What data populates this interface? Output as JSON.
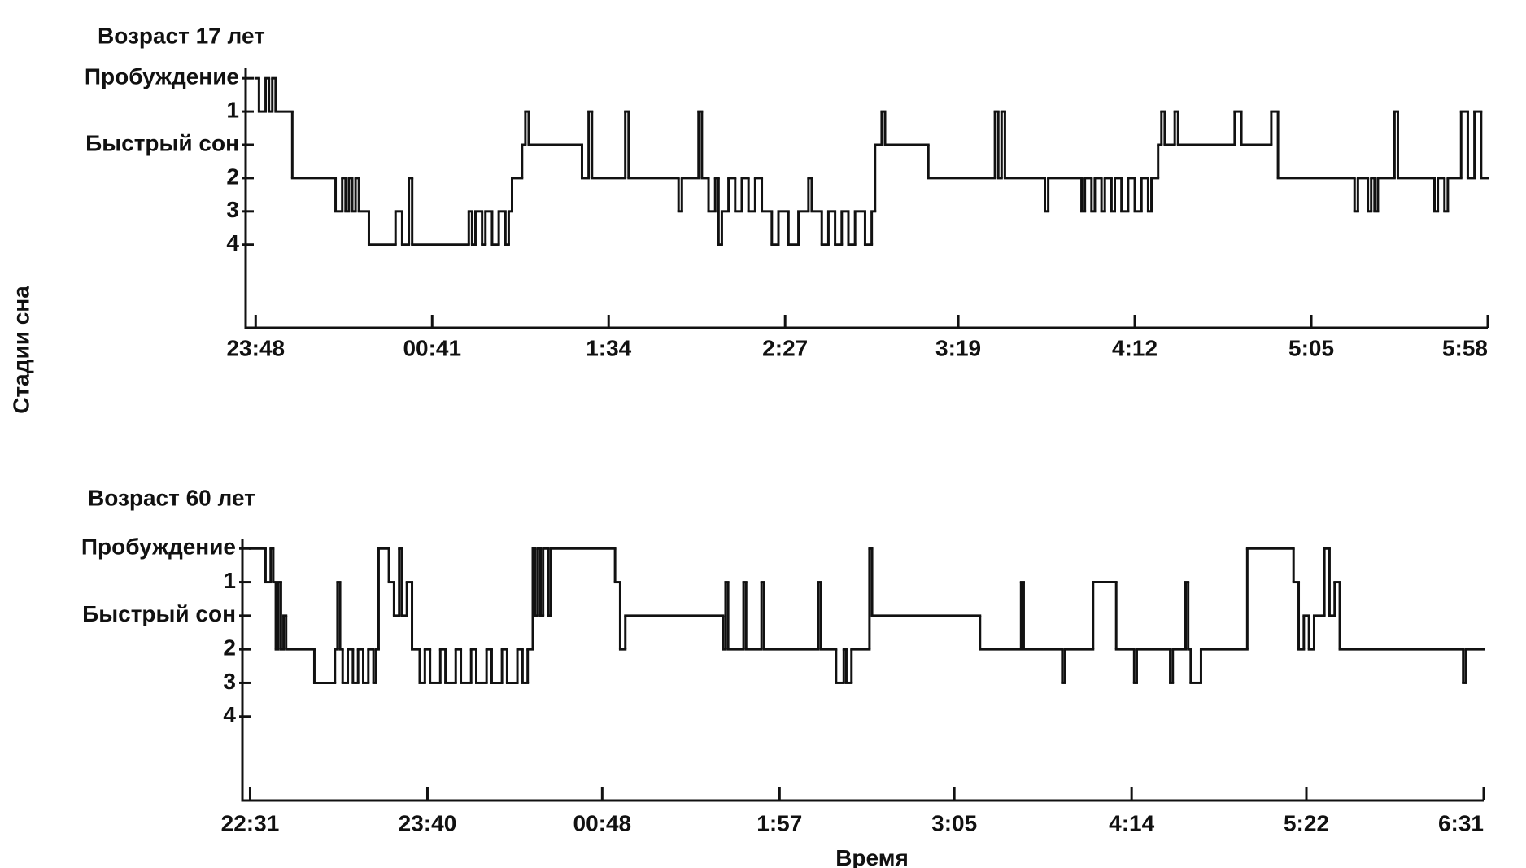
{
  "chart_data": [
    {
      "type": "step",
      "title": "Возраст 17 лет",
      "ylabel": "Стадии сна",
      "color": "#111111",
      "xlim": [
        -3,
        370
      ],
      "ylim": [
        7.5,
        -0.2
      ],
      "xticks": [
        {
          "value": 0,
          "label": "23:48"
        },
        {
          "value": 53,
          "label": "00:41"
        },
        {
          "value": 106,
          "label": "1:34"
        },
        {
          "value": 159,
          "label": "2:27"
        },
        {
          "value": 211,
          "label": "3:19"
        },
        {
          "value": 264,
          "label": "4:12"
        },
        {
          "value": 317,
          "label": "5:05"
        },
        {
          "value": 370,
          "label": "5:58"
        }
      ],
      "yticks": [
        {
          "value": 0,
          "label": "Пробуждение"
        },
        1,
        {
          "value": 2,
          "label": "Быстрый сон"
        },
        {
          "value": 3,
          "label": "2"
        },
        {
          "value": 4,
          "label": "3"
        },
        {
          "value": 5,
          "label": "4"
        }
      ],
      "x": [
        0,
        1,
        3,
        4,
        5,
        6,
        11,
        24,
        26,
        27,
        28,
        29,
        30,
        31,
        34,
        42,
        44,
        46,
        47,
        64,
        65,
        66,
        68,
        69,
        71,
        73,
        75,
        76,
        77,
        80,
        81,
        82,
        98,
        100,
        101,
        111,
        112,
        127,
        128,
        133,
        134,
        136,
        138,
        139,
        140,
        142,
        144,
        146,
        148,
        150,
        152,
        155,
        157,
        160,
        163,
        166,
        167,
        170,
        172,
        174,
        176,
        178,
        180,
        183,
        185,
        186,
        188,
        189,
        202,
        222,
        223,
        224,
        225,
        237,
        238,
        248,
        249,
        251,
        252,
        254,
        255,
        257,
        258,
        260,
        262,
        264,
        266,
        268,
        269,
        271,
        272,
        273,
        276,
        277,
        294,
        296,
        305,
        307,
        330,
        331,
        334,
        335,
        336,
        337,
        342,
        343,
        354,
        355,
        357,
        358,
        362,
        364,
        366,
        368
      ],
      "values": [
        0,
        1,
        0,
        1,
        0,
        1,
        3,
        4,
        3,
        4,
        3,
        4,
        3,
        4,
        5,
        4,
        5,
        3,
        5,
        4,
        5,
        4,
        5,
        4,
        5,
        4,
        5,
        4,
        3,
        2,
        1,
        2,
        3,
        1,
        3,
        1,
        3,
        4,
        3,
        1,
        3,
        4,
        3,
        5,
        4,
        3,
        4,
        3,
        4,
        3,
        4,
        5,
        4,
        5,
        4,
        3,
        4,
        5,
        4,
        5,
        4,
        5,
        4,
        5,
        4,
        2,
        1,
        2,
        3,
        1,
        3,
        1,
        3,
        4,
        3,
        4,
        3,
        4,
        3,
        4,
        3,
        4,
        3,
        4,
        3,
        4,
        3,
        4,
        3,
        2,
        1,
        2,
        1,
        2,
        1,
        2,
        1,
        3,
        4,
        3,
        4,
        3,
        4,
        3,
        1,
        3,
        4,
        3,
        4,
        3,
        1,
        3,
        1,
        3
      ]
    },
    {
      "type": "step",
      "title": "Возраст 60 лет",
      "xlabel": "Время",
      "color": "#111111",
      "xlim": [
        -3,
        480
      ],
      "ylim": [
        7.5,
        -0.2
      ],
      "xticks": [
        {
          "value": 0,
          "label": "22:31"
        },
        {
          "value": 69,
          "label": "23:40"
        },
        {
          "value": 137,
          "label": "00:48"
        },
        {
          "value": 206,
          "label": "1:57"
        },
        {
          "value": 274,
          "label": "3:05"
        },
        {
          "value": 343,
          "label": "4:14"
        },
        {
          "value": 411,
          "label": "5:22"
        },
        {
          "value": 480,
          "label": "6:31"
        }
      ],
      "yticks": [
        {
          "value": 0,
          "label": "Пробуждение"
        },
        1,
        {
          "value": 2,
          "label": "Быстрый сон"
        },
        {
          "value": 3,
          "label": "2"
        },
        {
          "value": 4,
          "label": "3"
        },
        {
          "value": 5,
          "label": "4"
        }
      ],
      "x": [
        0,
        6,
        8,
        9,
        10,
        11,
        12,
        13,
        14,
        25,
        33,
        34,
        35,
        36,
        38,
        40,
        42,
        44,
        46,
        48,
        49,
        50,
        54,
        56,
        58,
        59,
        61,
        63,
        66,
        68,
        70,
        74,
        76,
        80,
        82,
        86,
        88,
        92,
        94,
        98,
        100,
        104,
        106,
        108,
        110,
        111,
        112,
        113,
        114,
        116,
        117,
        142,
        144,
        146,
        184,
        185,
        186,
        192,
        193,
        199,
        200,
        221,
        222,
        228,
        231,
        232,
        234,
        241,
        242,
        284,
        300,
        301,
        316,
        317,
        328,
        337,
        344,
        345,
        358,
        359,
        364,
        365,
        366,
        370,
        388,
        406,
        408,
        410,
        412,
        414,
        418,
        420,
        422,
        424,
        472,
        473
      ],
      "values": [
        0,
        1,
        0,
        1,
        3,
        1,
        3,
        2,
        3,
        4,
        3,
        1,
        3,
        4,
        3,
        4,
        3,
        4,
        3,
        4,
        3,
        0,
        1,
        2,
        0,
        2,
        1,
        3,
        4,
        3,
        4,
        3,
        4,
        3,
        4,
        3,
        4,
        3,
        4,
        3,
        4,
        3,
        4,
        3,
        0,
        2,
        0,
        2,
        0,
        2,
        0,
        1,
        3,
        2,
        3,
        1,
        3,
        1,
        3,
        1,
        3,
        1,
        3,
        4,
        3,
        4,
        3,
        0,
        2,
        3,
        1,
        3,
        4,
        3,
        1,
        3,
        4,
        3,
        4,
        3,
        1,
        3,
        4,
        3,
        0,
        1,
        3,
        2,
        3,
        2,
        0,
        2,
        1,
        3,
        4,
        3
      ]
    }
  ]
}
